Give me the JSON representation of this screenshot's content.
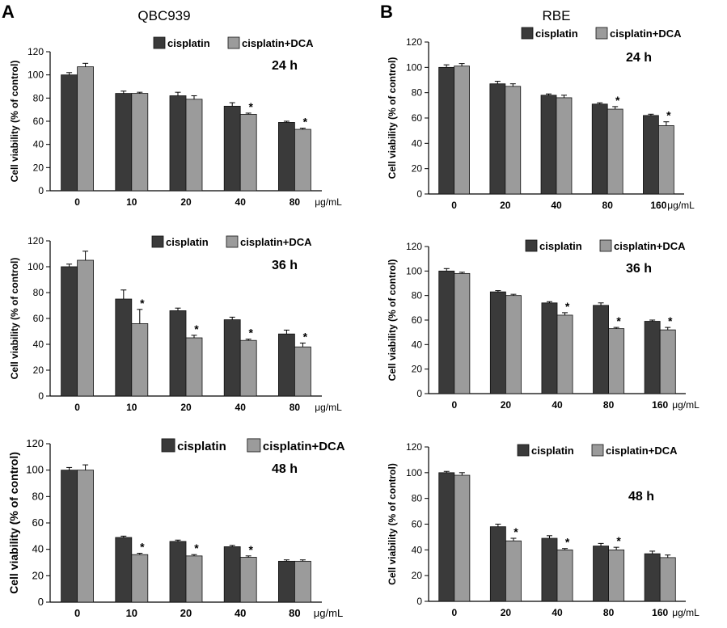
{
  "panels": [
    {
      "letter": "A",
      "title": "QBC939"
    },
    {
      "letter": "B",
      "title": "RBE"
    }
  ],
  "chart_data": [
    {
      "type": "bar",
      "panel": "A",
      "cell_line": "QBC939",
      "timepoint": "24 h",
      "categories": [
        "0",
        "10",
        "20",
        "40",
        "80"
      ],
      "unit": "μg/mL",
      "ylabel": "Cell viability (% of control)",
      "ylim": [
        0,
        120
      ],
      "yticks": [
        0,
        20,
        40,
        60,
        80,
        100,
        120
      ],
      "series": [
        {
          "name": "cisplatin",
          "color": "#3a3a3a",
          "values": [
            100,
            84,
            82,
            73,
            59
          ],
          "errors": [
            2,
            2,
            3,
            3,
            1
          ]
        },
        {
          "name": "cisplatin+DCA",
          "color": "#9b9b9b",
          "values": [
            107,
            84,
            79,
            66,
            53
          ],
          "errors": [
            3,
            1,
            3,
            1,
            1
          ]
        }
      ],
      "significance": [
        "",
        "",
        "",
        "*",
        "*"
      ]
    },
    {
      "type": "bar",
      "panel": "B",
      "cell_line": "RBE",
      "timepoint": "24 h",
      "categories": [
        "0",
        "20",
        "40",
        "80",
        "160"
      ],
      "unit": "μg/mL",
      "ylabel": "Cell viability (% of control)",
      "ylim": [
        0,
        120
      ],
      "yticks": [
        0,
        20,
        40,
        60,
        80,
        100,
        120
      ],
      "series": [
        {
          "name": "cisplatin",
          "color": "#3a3a3a",
          "values": [
            100,
            87,
            78,
            71,
            62
          ],
          "errors": [
            2,
            2,
            1,
            1,
            1
          ]
        },
        {
          "name": "cisplatin+DCA",
          "color": "#9b9b9b",
          "values": [
            101,
            85,
            76,
            67,
            54
          ],
          "errors": [
            2,
            2,
            2,
            2,
            3
          ]
        }
      ],
      "significance": [
        "",
        "",
        "",
        "*",
        "*"
      ]
    },
    {
      "type": "bar",
      "panel": "A",
      "cell_line": "QBC939",
      "timepoint": "36 h",
      "categories": [
        "0",
        "10",
        "20",
        "40",
        "80"
      ],
      "unit": "μg/mL",
      "ylabel": "Cell viability (% of control)",
      "ylim": [
        0,
        120
      ],
      "yticks": [
        0,
        20,
        40,
        60,
        80,
        100,
        120
      ],
      "series": [
        {
          "name": "cisplatin",
          "color": "#3a3a3a",
          "values": [
            100,
            75,
            66,
            59,
            48
          ],
          "errors": [
            2,
            7,
            2,
            2,
            3
          ]
        },
        {
          "name": "cisplatin+DCA",
          "color": "#9b9b9b",
          "values": [
            105,
            56,
            45,
            43,
            38
          ],
          "errors": [
            7,
            11,
            2,
            1,
            3
          ]
        }
      ],
      "significance": [
        "",
        "*",
        "*",
        "*",
        "*"
      ]
    },
    {
      "type": "bar",
      "panel": "B",
      "cell_line": "RBE",
      "timepoint": "36 h",
      "categories": [
        "0",
        "20",
        "40",
        "80",
        "160"
      ],
      "unit": "μg/mL",
      "ylabel": "Cell viability (% of control)",
      "ylim": [
        0,
        120
      ],
      "yticks": [
        0,
        20,
        40,
        60,
        80,
        100,
        120
      ],
      "series": [
        {
          "name": "cisplatin",
          "color": "#3a3a3a",
          "values": [
            100,
            83,
            74,
            72,
            59
          ],
          "errors": [
            2,
            1,
            1,
            2,
            1
          ]
        },
        {
          "name": "cisplatin+DCA",
          "color": "#9b9b9b",
          "values": [
            98,
            80,
            64,
            53,
            52
          ],
          "errors": [
            1,
            1,
            2,
            1,
            2
          ]
        }
      ],
      "significance": [
        "",
        "",
        "*",
        "*",
        "*"
      ]
    },
    {
      "type": "bar",
      "panel": "A",
      "cell_line": "QBC939",
      "timepoint": "48 h",
      "categories": [
        "0",
        "10",
        "20",
        "40",
        "80"
      ],
      "unit": "μg/mL",
      "ylabel": "Cell viability (% of control)",
      "ylim": [
        0,
        120
      ],
      "yticks": [
        0,
        20,
        40,
        60,
        80,
        100,
        120
      ],
      "series": [
        {
          "name": "cisplatin",
          "color": "#3a3a3a",
          "values": [
            100,
            49,
            46,
            42,
            31
          ],
          "errors": [
            2,
            1,
            1,
            1,
            1
          ]
        },
        {
          "name": "cisplatin+DCA",
          "color": "#9b9b9b",
          "values": [
            100,
            36,
            35,
            34,
            31
          ],
          "errors": [
            4,
            1,
            1,
            1,
            1
          ]
        }
      ],
      "significance": [
        "",
        "*",
        "*",
        "*",
        ""
      ]
    },
    {
      "type": "bar",
      "panel": "B",
      "cell_line": "RBE",
      "timepoint": "48 h",
      "categories": [
        "0",
        "20",
        "40",
        "80",
        "160"
      ],
      "unit": "μg/mL",
      "ylabel": "Cell viability (% of control)",
      "ylim": [
        0,
        120
      ],
      "yticks": [
        0,
        20,
        40,
        60,
        80,
        100,
        120
      ],
      "series": [
        {
          "name": "cisplatin",
          "color": "#3a3a3a",
          "values": [
            100,
            58,
            49,
            43,
            37
          ],
          "errors": [
            1,
            2,
            2,
            2,
            2
          ]
        },
        {
          "name": "cisplatin+DCA",
          "color": "#9b9b9b",
          "values": [
            98,
            47,
            40,
            40,
            34
          ],
          "errors": [
            2,
            2,
            1,
            2,
            2
          ]
        }
      ],
      "significance": [
        "",
        "*",
        "*",
        "*",
        ""
      ]
    }
  ]
}
